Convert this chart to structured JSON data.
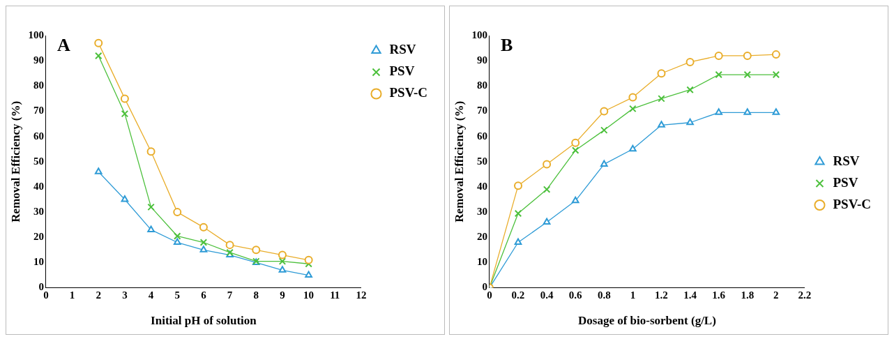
{
  "chart_data": [
    {
      "type": "line",
      "title": "A",
      "xlabel": "Initial pH of solution",
      "ylabel": "Removal Efficiency (%)",
      "x": [
        2,
        3,
        4,
        5,
        6,
        7,
        8,
        9,
        10
      ],
      "xlim": [
        0,
        12
      ],
      "xticks": [
        0,
        1,
        2,
        3,
        4,
        5,
        6,
        7,
        8,
        9,
        10,
        11,
        12
      ],
      "ylim": [
        0,
        100
      ],
      "yticks": [
        0,
        10,
        20,
        30,
        40,
        50,
        60,
        70,
        80,
        90,
        100
      ],
      "grid": false,
      "legend": "top right",
      "line_style": "solid",
      "series": [
        {
          "name": "RSV",
          "color": "#2e9bd6",
          "marker": "triangle",
          "values": [
            46,
            35,
            23,
            18,
            15,
            13,
            10,
            7,
            5
          ]
        },
        {
          "name": "PSV",
          "color": "#4cc03c",
          "marker": "cross",
          "values": [
            92,
            69,
            32,
            20.5,
            18,
            14,
            10.5,
            10.5,
            9.5
          ]
        },
        {
          "name": "PSV-C",
          "color": "#e9ad2a",
          "marker": "circle",
          "values": [
            97,
            75,
            54,
            30,
            24,
            17,
            15,
            13,
            11
          ]
        }
      ]
    },
    {
      "type": "line",
      "title": "B",
      "xlabel": "Dosage of bio-sorbent (g/L)",
      "ylabel": "Removal Efficiency (%)",
      "x": [
        0,
        0.2,
        0.4,
        0.6,
        0.8,
        1,
        1.2,
        1.4,
        1.6,
        1.8,
        2
      ],
      "xlim": [
        0,
        2.2
      ],
      "xticks": [
        0,
        0.2,
        0.4,
        0.6,
        0.8,
        1,
        1.2,
        1.4,
        1.6,
        1.8,
        2,
        2.2
      ],
      "ylim": [
        0,
        100
      ],
      "yticks": [
        0,
        10,
        20,
        30,
        40,
        50,
        60,
        70,
        80,
        90,
        100
      ],
      "grid": false,
      "legend": "right",
      "line_style": "solid",
      "series": [
        {
          "name": "RSV",
          "color": "#2e9bd6",
          "marker": "triangle",
          "values": [
            0,
            18,
            26,
            34.5,
            49,
            55,
            64.5,
            65.5,
            69.5,
            69.5,
            69.5
          ]
        },
        {
          "name": "PSV",
          "color": "#4cc03c",
          "marker": "cross",
          "values": [
            0,
            29.5,
            39,
            54.5,
            62.5,
            71,
            75,
            78.5,
            84.5,
            84.5,
            84.5
          ]
        },
        {
          "name": "PSV-C",
          "color": "#e9ad2a",
          "marker": "circle",
          "values": [
            0,
            40.5,
            49,
            57.5,
            70,
            75.5,
            85,
            89.5,
            92,
            92,
            92.5
          ]
        }
      ]
    }
  ]
}
